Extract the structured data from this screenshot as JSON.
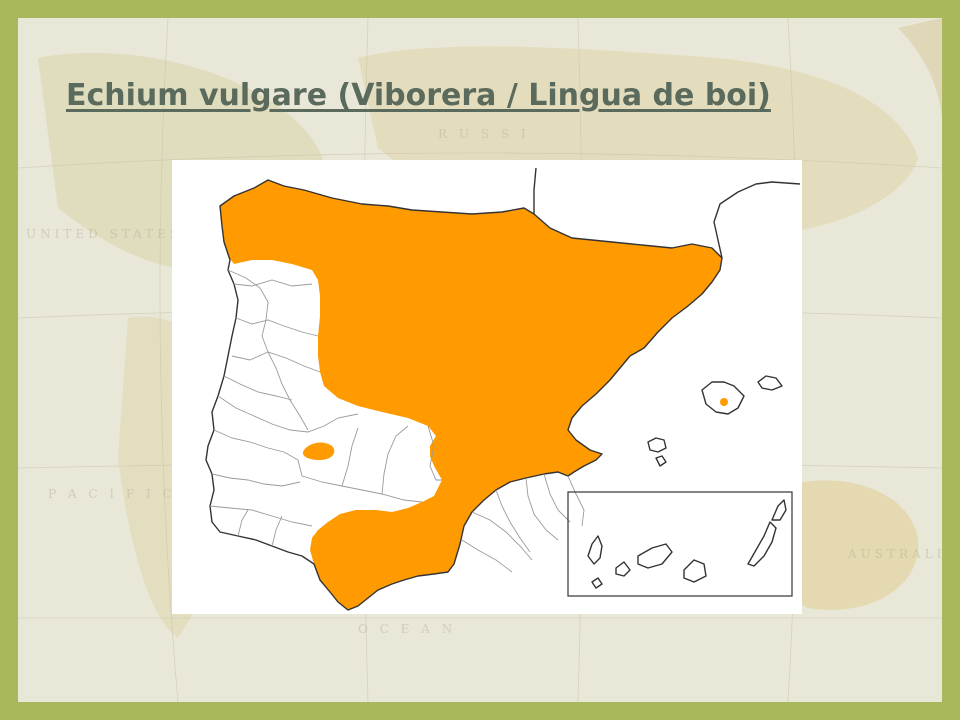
{
  "slide": {
    "title": "Echium vulgare (Viborera / Lingua de boi)"
  },
  "background": {
    "description_icon": "world-map-background",
    "frame_color": "#a9b85a"
  },
  "map": {
    "region": "Iberian Peninsula, Balearic and Canary Islands",
    "range_color": "#ff9a00",
    "outline_color": "#333333"
  }
}
